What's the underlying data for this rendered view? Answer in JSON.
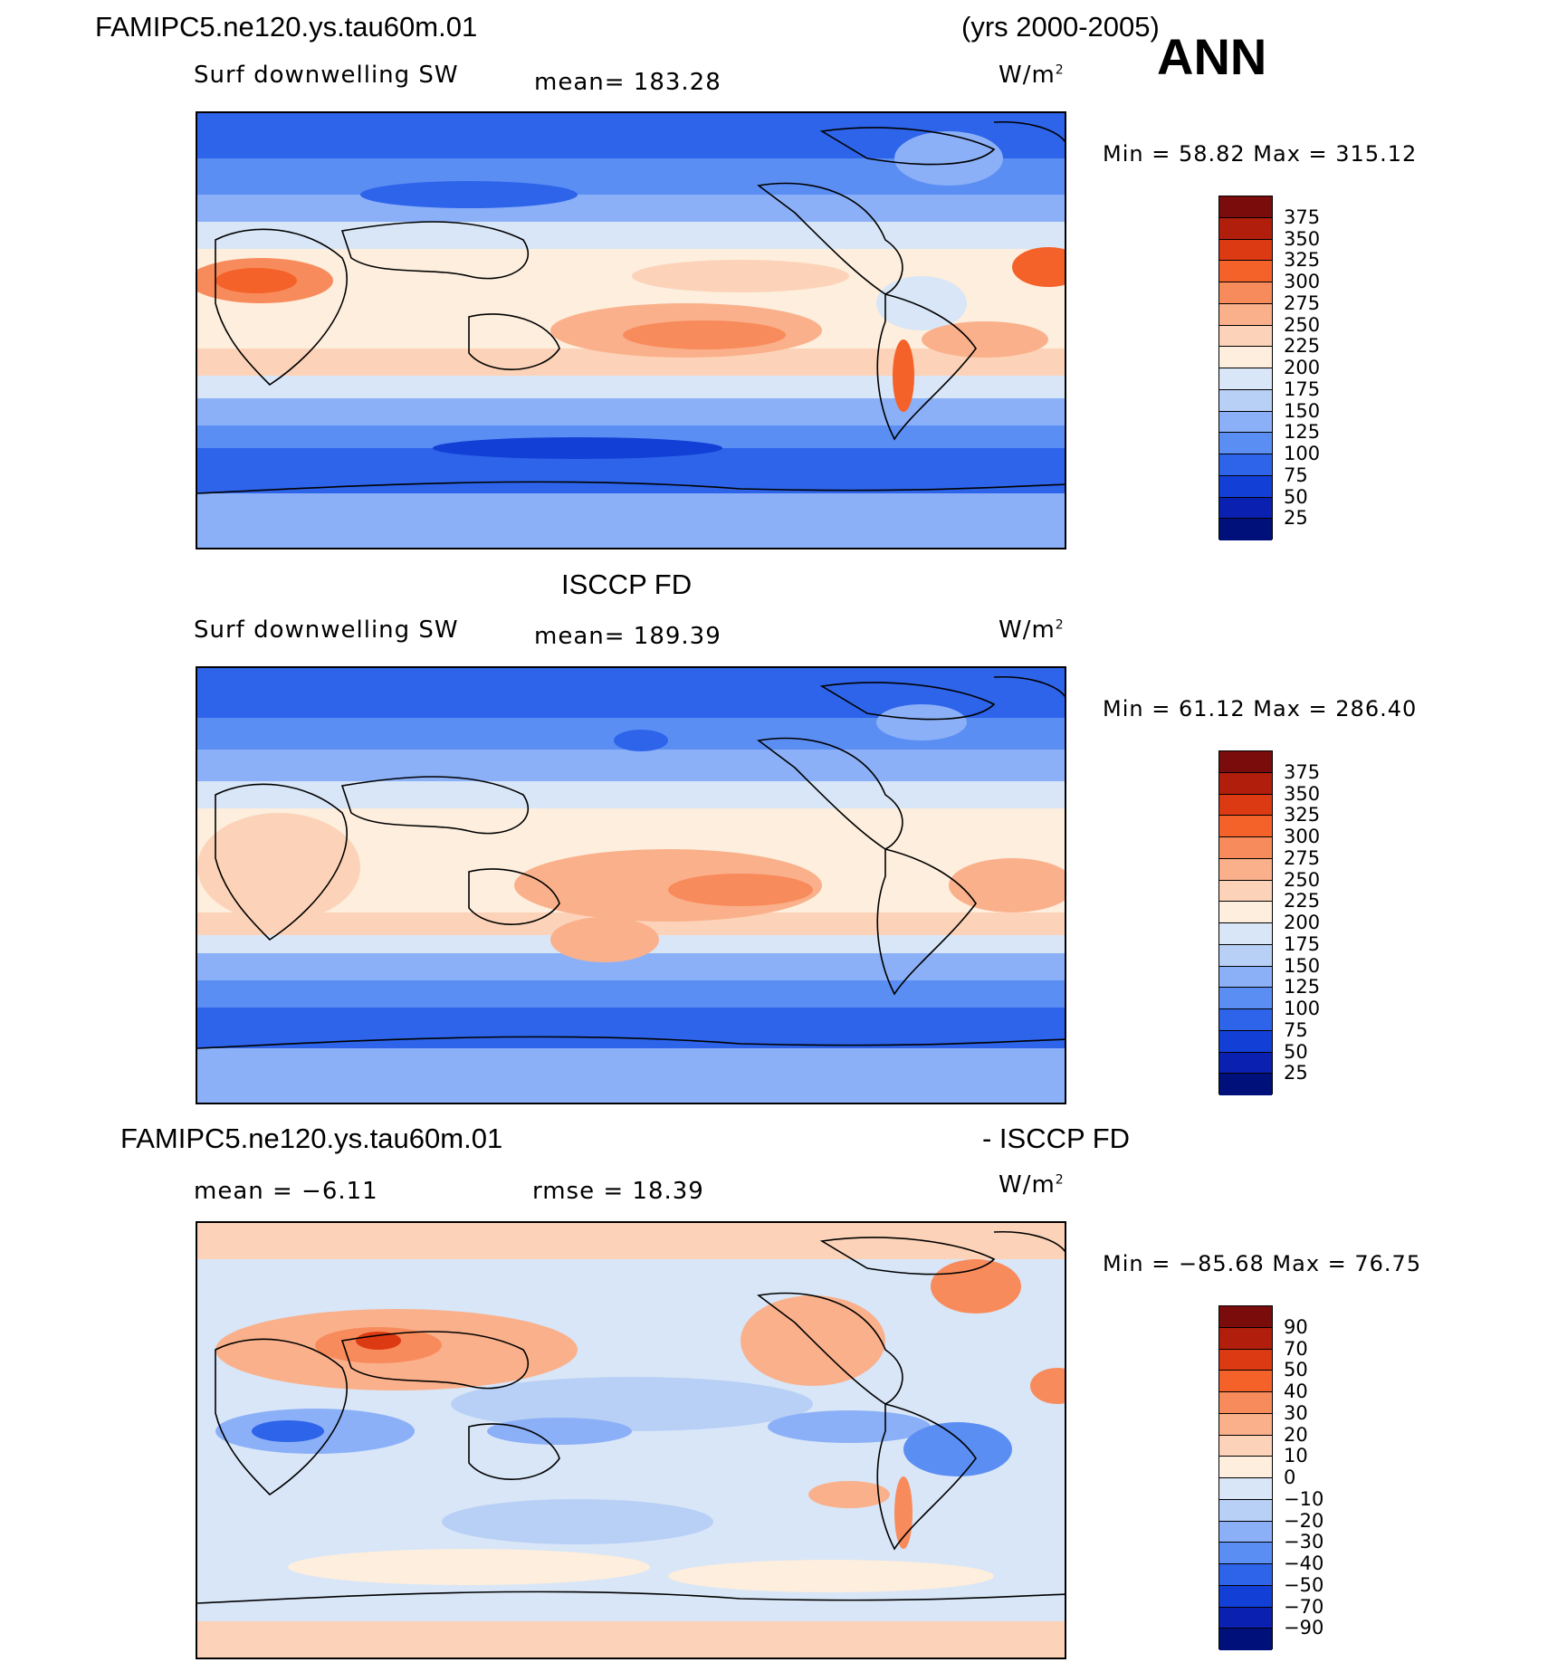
{
  "header": {
    "case_name": "FAMIPC5.ne120.ys.tau60m.01",
    "years": "(yrs 2000-2005)",
    "season": "ANN"
  },
  "panels": [
    {
      "title": "",
      "field_label": "Surf  downwelling  SW",
      "mean_text": "mean=  183.28",
      "units_base": "W/m",
      "units_exp": "2",
      "min_max_text": "Min  =   58.82  Max  =  315.12",
      "colorbar": {
        "labels": [
          "375",
          "350",
          "325",
          "300",
          "275",
          "250",
          "225",
          "200",
          "175",
          "150",
          "125",
          "100",
          "75",
          "50",
          "25"
        ],
        "colors": [
          "#7a0c0c",
          "#b21e0c",
          "#dc3a12",
          "#f4622a",
          "#f88b5c",
          "#fab08b",
          "#fcd3b8",
          "#fdeedd",
          "#d8e6f7",
          "#b8d0f6",
          "#8bb0f7",
          "#5b8ef3",
          "#2d64ea",
          "#1240d6",
          "#0a20b0",
          "#00107a"
        ]
      }
    },
    {
      "title": "ISCCP FD",
      "field_label": "Surf  downwelling  SW",
      "mean_text": "mean=  189.39",
      "units_base": "W/m",
      "units_exp": "2",
      "min_max_text": "Min  =   61.12  Max  =  286.40",
      "colorbar": {
        "labels": [
          "375",
          "350",
          "325",
          "300",
          "275",
          "250",
          "225",
          "200",
          "175",
          "150",
          "125",
          "100",
          "75",
          "50",
          "25"
        ],
        "colors": [
          "#7a0c0c",
          "#b21e0c",
          "#dc3a12",
          "#f4622a",
          "#f88b5c",
          "#fab08b",
          "#fcd3b8",
          "#fdeedd",
          "#d8e6f7",
          "#b8d0f6",
          "#8bb0f7",
          "#5b8ef3",
          "#2d64ea",
          "#1240d6",
          "#0a20b0",
          "#00107a"
        ]
      }
    },
    {
      "title_left": "FAMIPC5.ne120.ys.tau60m.01",
      "title_right": "- ISCCP FD",
      "mean_text": "mean  =   −6.11",
      "rmse_text": "rmse  =   18.39",
      "units_base": "W/m",
      "units_exp": "2",
      "min_max_text": "Min  = −85.68  Max  =   76.75",
      "colorbar": {
        "labels": [
          "90",
          "70",
          "50",
          "40",
          "30",
          "20",
          "10",
          "0",
          "−10",
          "−20",
          "−30",
          "−40",
          "−50",
          "−70",
          "−90"
        ],
        "colors": [
          "#7a0c0c",
          "#b21e0c",
          "#dc3a12",
          "#f4622a",
          "#f88b5c",
          "#fab08b",
          "#fcd3b8",
          "#fdeedd",
          "#d8e6f7",
          "#b8d0f6",
          "#8bb0f7",
          "#5b8ef3",
          "#2d64ea",
          "#1240d6",
          "#0a20b0",
          "#00107a"
        ]
      }
    }
  ]
}
